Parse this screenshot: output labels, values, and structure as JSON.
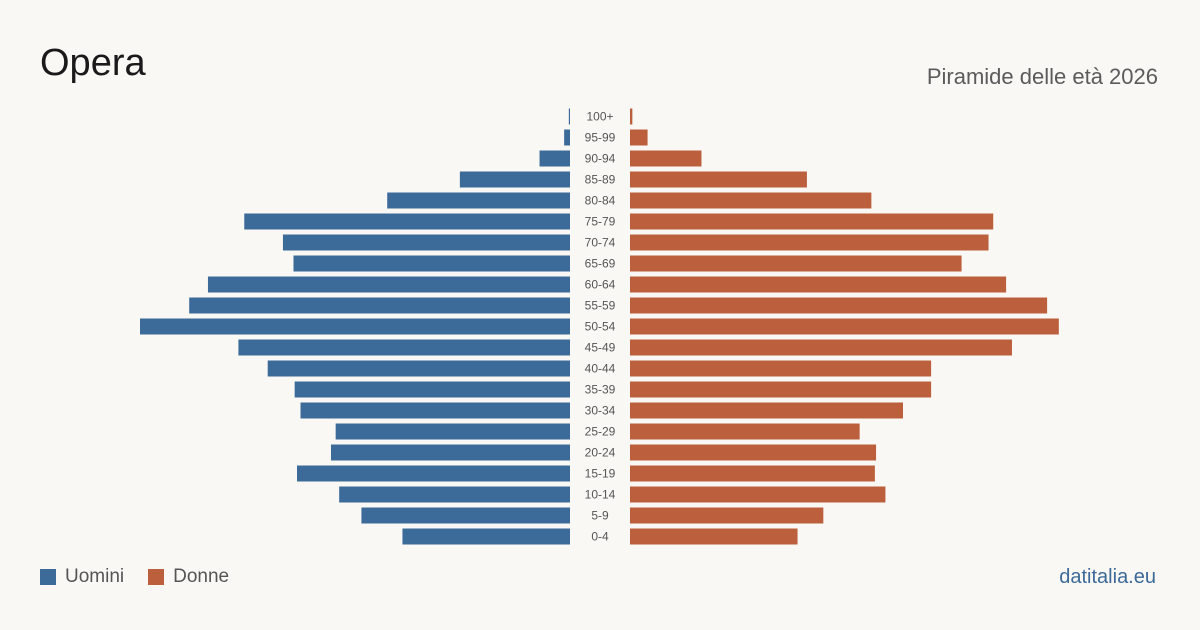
{
  "header": {
    "title": "Opera",
    "subtitle": "Piramide delle età 2026"
  },
  "legend": {
    "men_label": "Uomini",
    "women_label": "Donne"
  },
  "footer": {
    "source": "datitalia.eu"
  },
  "colors": {
    "men": "#3c6a99",
    "women": "#bc5f3d",
    "tick_label": "#555555"
  },
  "chart_data": {
    "type": "bar",
    "orientation": "horizontal-diverging",
    "categories": [
      "100+",
      "95-99",
      "90-94",
      "85-89",
      "80-84",
      "75-79",
      "70-74",
      "65-69",
      "60-64",
      "55-59",
      "50-54",
      "45-49",
      "40-44",
      "35-39",
      "30-34",
      "25-29",
      "20-24",
      "15-19",
      "10-14",
      "5-9",
      "0-4"
    ],
    "series": [
      {
        "name": "Uomini",
        "values": [
          1,
          5,
          26,
          94,
          156,
          278,
          245,
          236,
          309,
          325,
          367,
          283,
          258,
          235,
          230,
          200,
          204,
          233,
          197,
          178,
          143
        ]
      },
      {
        "name": "Donne",
        "values": [
          2,
          15,
          61,
          151,
          206,
          310,
          306,
          283,
          321,
          356,
          366,
          326,
          257,
          257,
          233,
          196,
          210,
          209,
          218,
          165,
          143
        ]
      }
    ],
    "max_value": 367,
    "grid": false,
    "legend_position": "bottom-left"
  }
}
